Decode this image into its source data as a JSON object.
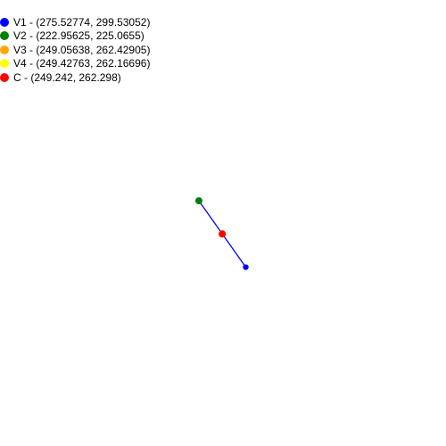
{
  "legend": {
    "items": [
      {
        "id": "v1",
        "label": "V1 - (275.52774, 299.53052)",
        "color": "#0000ff"
      },
      {
        "id": "v2",
        "label": "V2 - (222.95625, 225.0655)",
        "color": "#008000"
      },
      {
        "id": "v3",
        "label": "V3 - (249.05638, 262.42905)",
        "color": "#ffa500"
      },
      {
        "id": "v4",
        "label": "V4 - (249.42763, 262.16696)",
        "color": "#ffff00"
      },
      {
        "id": "c",
        "label": "C - (249.242, 262.298)",
        "color": "#ff0000"
      }
    ]
  },
  "diagram": {
    "points": [
      {
        "id": "v1",
        "x": 275.52774,
        "y": 299.53052,
        "color": "#0000ff"
      },
      {
        "id": "v2",
        "x": 222.95625,
        "y": 225.0655,
        "color": "#008000"
      },
      {
        "id": "v3",
        "x": 249.05638,
        "y": 262.42905,
        "color": "#ffa500"
      },
      {
        "id": "v4",
        "x": 249.42763,
        "y": 262.16696,
        "color": "#ffff00"
      },
      {
        "id": "c",
        "x": 249.242,
        "y": 262.298,
        "color": "#ff0000"
      }
    ],
    "segments": [
      {
        "from": "v1",
        "to": "v2",
        "color": "#0000ff"
      }
    ],
    "draw_order": [
      "v4",
      "v3",
      "v1",
      "v2",
      "c"
    ]
  }
}
